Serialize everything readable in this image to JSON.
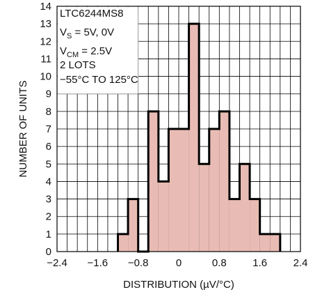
{
  "chart_data": {
    "type": "bar",
    "xlabel": "DISTRIBUTION (µV/°C)",
    "ylabel": "NUMBER OF UNITS",
    "xlim": [
      -2.4,
      2.4
    ],
    "ylim": [
      0,
      14
    ],
    "x_ticks": [
      "−2.4",
      "−1.6",
      "−0.8",
      "0",
      "0.8",
      "1.6",
      "2.4"
    ],
    "y_ticks": [
      "0",
      "1",
      "2",
      "3",
      "4",
      "5",
      "6",
      "7",
      "8",
      "9",
      "10",
      "11",
      "12",
      "13",
      "14"
    ],
    "grid": true,
    "bin_width": 0.2,
    "bins": [
      {
        "x": -1.2,
        "value": 1
      },
      {
        "x": -1.0,
        "value": 3
      },
      {
        "x": -0.8,
        "value": 0
      },
      {
        "x": -0.6,
        "value": 8
      },
      {
        "x": -0.4,
        "value": 4
      },
      {
        "x": -0.2,
        "value": 7
      },
      {
        "x": 0.0,
        "value": 7
      },
      {
        "x": 0.2,
        "value": 13
      },
      {
        "x": 0.4,
        "value": 5
      },
      {
        "x": 0.6,
        "value": 7
      },
      {
        "x": 0.8,
        "value": 8
      },
      {
        "x": 1.0,
        "value": 3
      },
      {
        "x": 1.2,
        "value": 5
      },
      {
        "x": 1.4,
        "value": 3
      },
      {
        "x": 1.6,
        "value": 1
      },
      {
        "x": 1.8,
        "value": 1
      }
    ],
    "fill_color": "#e8bcb4",
    "stroke_color": "#000000",
    "annotation": {
      "part": "LTC6244MS8",
      "vs_prefix": "V",
      "vs_sub": "S",
      "vs_value": " = 5V, 0V",
      "vcm_prefix": "V",
      "vcm_sub": "CM",
      "vcm_value": " = 2.5V",
      "lots": "2 LOTS",
      "temp": "−55°C TO 125°C"
    }
  }
}
